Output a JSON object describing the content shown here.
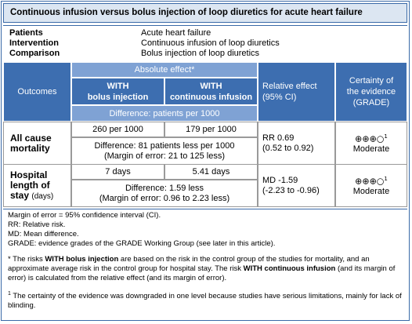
{
  "title": "Continuous infusion versus bolus injection of loop diuretics for acute heart failure",
  "pico": [
    {
      "label": "Patients",
      "value": "Acute heart failure"
    },
    {
      "label": "Intervention",
      "value": "Continuous infusion of loop diuretics"
    },
    {
      "label": "Comparison",
      "value": "Bolus injection of loop diuretics"
    }
  ],
  "header": {
    "outcomes": "Outcomes",
    "absolute_effect": "Absolute effect*",
    "bolus": [
      "WITH",
      "bolus injection"
    ],
    "continuous": [
      "WITH",
      "continuous infusion"
    ],
    "difference": "Difference: patients per 1000",
    "relative": [
      "Relative effect",
      "(95% CI)"
    ],
    "certainty": [
      "Certainty of",
      "the evidence",
      "(GRADE)"
    ]
  },
  "rows": [
    {
      "outcome": [
        "All cause",
        "mortality"
      ],
      "bolus": "260 per 1000",
      "continuous": "179 per 1000",
      "difference": [
        "Difference: 81 patients less per 1000",
        "(Margin of error: 21 to 125 less)"
      ],
      "relative": [
        "RR 0.69",
        "(0.52 to 0.92)"
      ],
      "certainty": "⊕⊕⊕○",
      "certainty_note": "1",
      "certainty_label": "Moderate"
    },
    {
      "outcome": [
        "Hospital",
        "length of",
        "stay"
      ],
      "unit": "(days)",
      "bolus": "7 days",
      "continuous": "5.41 days",
      "difference": [
        "Difference: 1.59 less",
        "(Margin of error: 0.96 to 2.23 less)"
      ],
      "relative": [
        "MD -1.59",
        "(-2.23 to -0.96)"
      ],
      "certainty": "⊕⊕⊕○",
      "certainty_note": "1",
      "certainty_label": "Moderate"
    }
  ],
  "notes": [
    "Margin of error = 95% confidence interval (CI).",
    "RR: Relative risk.",
    "MD: Mean difference.",
    "GRADE: evidence grades of the GRADE Working Group (see later in this article)."
  ],
  "star_note": [
    "* The risks ",
    "WITH bolus injection",
    " are based on the risk in the control group of the studies for mortality, and an approximate average risk in the control group for hospital stay. The risk ",
    "WITH continuous infusion",
    " (and its margin of error) is calculated from the relative effect (and its margin of error)."
  ],
  "footnote": {
    "marker": "1",
    "text": " The certainty of the evidence was downgraded in one level because studies have serious limitations, mainly for lack of blinding."
  }
}
